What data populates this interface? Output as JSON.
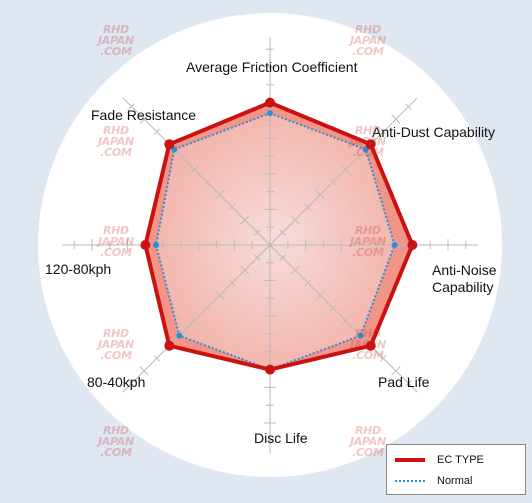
{
  "chart_data": {
    "type": "radar",
    "axes": [
      "Average Friction Coefficient",
      "Anti-Dust Capability",
      "Anti-Noise Capability",
      "Pad Life",
      "Disc Life",
      "80-40kph",
      "120-80kph",
      "Fade Resistance"
    ],
    "scale": [
      0,
      5
    ],
    "series": [
      {
        "name": "EC TYPE",
        "color": "#cc1111",
        "style": "solid",
        "values": [
          4.0,
          4.0,
          4.0,
          4.0,
          3.5,
          4.0,
          3.5,
          4.0
        ]
      },
      {
        "name": "Normal",
        "color": "#2a8fd6",
        "style": "dotted",
        "values": [
          3.7,
          3.8,
          3.5,
          3.6,
          3.5,
          3.6,
          3.2,
          3.8
        ]
      }
    ],
    "grid": true
  },
  "watermark": {
    "lines": [
      "RHD",
      "JAPAN",
      ".COM"
    ]
  }
}
